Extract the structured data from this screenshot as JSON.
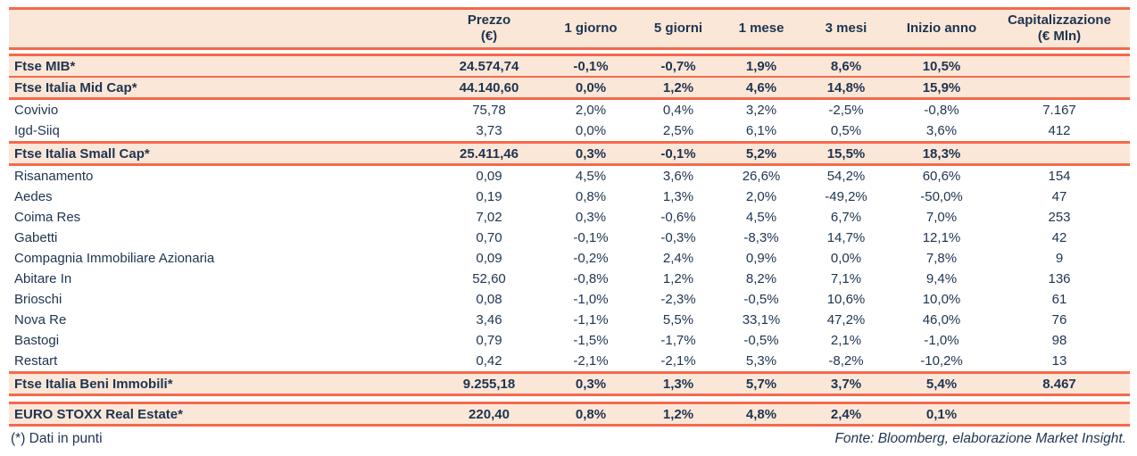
{
  "colors": {
    "accent_line": "#f4694c",
    "row_highlight": "#fbe7d8",
    "text": "#1e3450"
  },
  "table": {
    "columns": [
      {
        "label": "",
        "sublabel": ""
      },
      {
        "label": "Prezzo",
        "sublabel": "(€)"
      },
      {
        "label": "1 giorno",
        "sublabel": ""
      },
      {
        "label": "5 giorni",
        "sublabel": ""
      },
      {
        "label": "1 mese",
        "sublabel": ""
      },
      {
        "label": "3 mesi",
        "sublabel": ""
      },
      {
        "label": "Inizio anno",
        "sublabel": ""
      },
      {
        "label": "Capitalizzazione",
        "sublabel": "(€ Mln)"
      }
    ],
    "rows": [
      {
        "name": "Ftse MIB*",
        "type": "index",
        "values": [
          "24.574,74",
          "-0,1%",
          "-0,7%",
          "1,9%",
          "8,6%",
          "10,5%",
          ""
        ]
      },
      {
        "name": "Ftse Italia Mid Cap*",
        "type": "index",
        "values": [
          "44.140,60",
          "0,0%",
          "1,2%",
          "4,6%",
          "14,8%",
          "15,9%",
          ""
        ]
      },
      {
        "name": "Covivio",
        "type": "stock",
        "values": [
          "75,78",
          "2,0%",
          "0,4%",
          "3,2%",
          "-2,5%",
          "-0,8%",
          "7.167"
        ]
      },
      {
        "name": "Igd-Siiq",
        "type": "stock",
        "values": [
          "3,73",
          "0,0%",
          "2,5%",
          "6,1%",
          "0,5%",
          "3,6%",
          "412"
        ]
      },
      {
        "name": "Ftse Italia Small Cap*",
        "type": "index",
        "values": [
          "25.411,46",
          "0,3%",
          "-0,1%",
          "5,2%",
          "15,5%",
          "18,3%",
          ""
        ]
      },
      {
        "name": "Risanamento",
        "type": "stock",
        "values": [
          "0,09",
          "4,5%",
          "3,6%",
          "26,6%",
          "54,2%",
          "60,6%",
          "154"
        ]
      },
      {
        "name": "Aedes",
        "type": "stock",
        "values": [
          "0,19",
          "0,8%",
          "1,3%",
          "2,0%",
          "-49,2%",
          "-50,0%",
          "47"
        ]
      },
      {
        "name": "Coima Res",
        "type": "stock",
        "values": [
          "7,02",
          "0,3%",
          "-0,6%",
          "4,5%",
          "6,7%",
          "7,0%",
          "253"
        ]
      },
      {
        "name": "Gabetti",
        "type": "stock",
        "values": [
          "0,70",
          "-0,1%",
          "-0,3%",
          "-8,3%",
          "14,7%",
          "12,1%",
          "42"
        ]
      },
      {
        "name": "Compagnia Immobiliare Azionaria",
        "type": "stock",
        "values": [
          "0,09",
          "-0,2%",
          "2,4%",
          "0,9%",
          "0,0%",
          "7,8%",
          "9"
        ]
      },
      {
        "name": "Abitare In",
        "type": "stock",
        "values": [
          "52,60",
          "-0,8%",
          "1,2%",
          "8,2%",
          "7,1%",
          "9,4%",
          "136"
        ]
      },
      {
        "name": "Brioschi",
        "type": "stock",
        "values": [
          "0,08",
          "-1,0%",
          "-2,3%",
          "-0,5%",
          "10,6%",
          "10,0%",
          "61"
        ]
      },
      {
        "name": "Nova Re",
        "type": "stock",
        "values": [
          "3,46",
          "-1,1%",
          "5,5%",
          "33,1%",
          "47,2%",
          "46,0%",
          "76"
        ]
      },
      {
        "name": "Bastogi",
        "type": "stock",
        "values": [
          "0,79",
          "-1,5%",
          "-1,7%",
          "-0,5%",
          "2,1%",
          "-1,0%",
          "98"
        ]
      },
      {
        "name": "Restart",
        "type": "stock",
        "values": [
          "0,42",
          "-2,1%",
          "-2,1%",
          "5,3%",
          "-8,2%",
          "-10,2%",
          "13"
        ]
      },
      {
        "name": "Ftse Italia Beni Immobili*",
        "type": "index",
        "values": [
          "9.255,18",
          "0,3%",
          "1,3%",
          "5,7%",
          "3,7%",
          "5,4%",
          "8.467"
        ]
      },
      {
        "name": "EURO STOXX Real Estate*",
        "type": "index",
        "values": [
          "220,40",
          "0,8%",
          "1,2%",
          "4,8%",
          "2,4%",
          "0,1%",
          ""
        ]
      }
    ]
  },
  "footer": {
    "note": "(*) Dati in punti",
    "source": "Fonte: Bloomberg, elaborazione Market Insight."
  }
}
